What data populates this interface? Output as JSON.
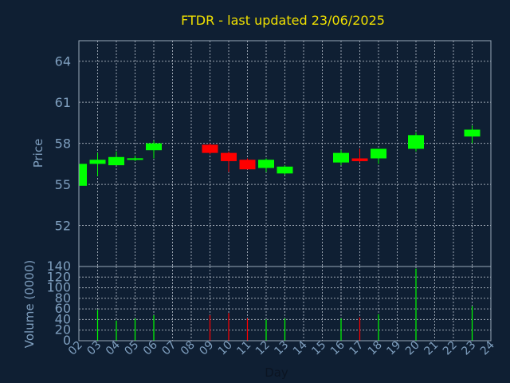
{
  "chart_data": {
    "type": "candlestick",
    "title": "FTDR - last updated 23/06/2025",
    "xlabel": "Day",
    "colors": {
      "up": "#00ff00",
      "down": "#ff0000",
      "background": "#0f1f33",
      "title": "#f0e000",
      "axis_text": "#7f9fbf"
    },
    "x_ticks": [
      "02",
      "03",
      "04",
      "05",
      "06",
      "07",
      "08",
      "09",
      "10",
      "11",
      "12",
      "13",
      "14",
      "15",
      "16",
      "17",
      "18",
      "19",
      "20",
      "21",
      "22",
      "23",
      "24"
    ],
    "price": {
      "ylabel": "Price",
      "ylim": [
        49.0,
        65.5
      ],
      "yticks": [
        52,
        55,
        58,
        61,
        64
      ],
      "grid": true,
      "candles": [
        {
          "day": "02",
          "open": 54.9,
          "high": 56.5,
          "low": 54.9,
          "close": 56.5
        },
        {
          "day": "03",
          "open": 56.5,
          "high": 57.3,
          "low": 55.6,
          "close": 56.8
        },
        {
          "day": "04",
          "open": 56.4,
          "high": 57.4,
          "low": 56.4,
          "close": 57.0
        },
        {
          "day": "05",
          "open": 56.8,
          "high": 57.1,
          "low": 56.7,
          "close": 56.85
        },
        {
          "day": "06",
          "open": 57.5,
          "high": 58.2,
          "low": 56.9,
          "close": 58.0
        },
        {
          "day": "09",
          "open": 57.9,
          "high": 58.0,
          "low": 57.2,
          "close": 57.3
        },
        {
          "day": "10",
          "open": 57.3,
          "high": 57.4,
          "low": 55.9,
          "close": 56.7
        },
        {
          "day": "11",
          "open": 56.8,
          "high": 56.9,
          "low": 56.1,
          "close": 56.1
        },
        {
          "day": "12",
          "open": 56.2,
          "high": 56.9,
          "low": 55.9,
          "close": 56.8
        },
        {
          "day": "13",
          "open": 55.8,
          "high": 56.4,
          "low": 55.7,
          "close": 56.3
        },
        {
          "day": "16",
          "open": 56.6,
          "high": 57.5,
          "low": 56.4,
          "close": 57.3
        },
        {
          "day": "17",
          "open": 56.9,
          "high": 57.6,
          "low": 56.6,
          "close": 56.7
        },
        {
          "day": "18",
          "open": 56.9,
          "high": 57.6,
          "low": 56.5,
          "close": 57.6
        },
        {
          "day": "20",
          "open": 57.6,
          "high": 58.8,
          "low": 57.4,
          "close": 58.6
        },
        {
          "day": "23",
          "open": 58.5,
          "high": 59.3,
          "low": 58.0,
          "close": 59.0
        }
      ]
    },
    "volume": {
      "ylabel": "Volume (0000)",
      "ylim": [
        0,
        140
      ],
      "yticks": [
        0,
        20,
        40,
        60,
        80,
        100,
        120,
        140
      ],
      "grid": true,
      "bars": [
        {
          "day": "03",
          "value": 58,
          "direction": "up"
        },
        {
          "day": "04",
          "value": 38,
          "direction": "up"
        },
        {
          "day": "05",
          "value": 42,
          "direction": "up"
        },
        {
          "day": "06",
          "value": 48,
          "direction": "up"
        },
        {
          "day": "09",
          "value": 48,
          "direction": "down"
        },
        {
          "day": "10",
          "value": 52,
          "direction": "down"
        },
        {
          "day": "11",
          "value": 42,
          "direction": "down"
        },
        {
          "day": "12",
          "value": 40,
          "direction": "up"
        },
        {
          "day": "13",
          "value": 42,
          "direction": "up"
        },
        {
          "day": "16",
          "value": 42,
          "direction": "up"
        },
        {
          "day": "17",
          "value": 44,
          "direction": "down"
        },
        {
          "day": "18",
          "value": 50,
          "direction": "up"
        },
        {
          "day": "20",
          "value": 136,
          "direction": "up"
        },
        {
          "day": "23",
          "value": 65,
          "direction": "up"
        }
      ]
    }
  }
}
